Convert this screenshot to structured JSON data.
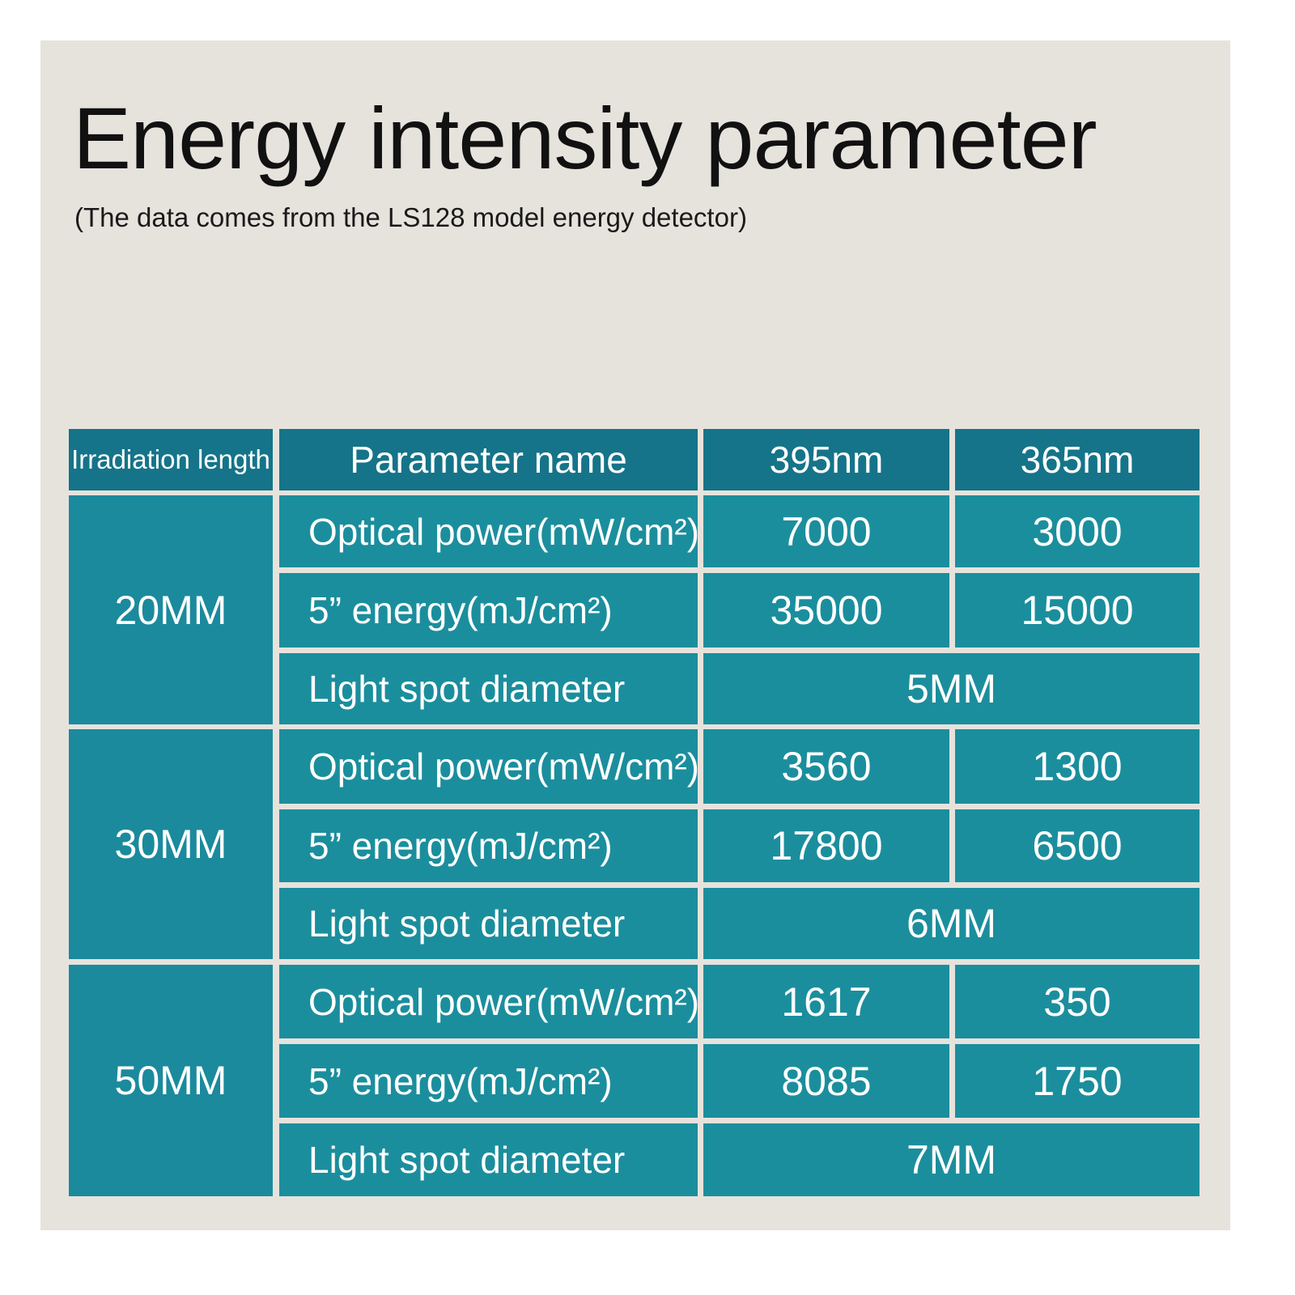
{
  "title": "Energy intensity parameter",
  "subtitle": "(The data comes from the LS128 model energy detector)",
  "colors": {
    "background": "#e6e3dd",
    "header": "#157489",
    "cell": "#1b8e9d",
    "text": "#ffffff"
  },
  "table": {
    "headers": [
      "Irradiation length",
      "Parameter name",
      "395nm",
      "365nm"
    ],
    "groups": [
      {
        "length": "20MM",
        "rows": [
          {
            "name": "Optical power(mW/cm²)",
            "nm395": "7000",
            "nm365": "3000"
          },
          {
            "name": "5” energy(mJ/cm²)",
            "nm395": "35000",
            "nm365": "15000"
          }
        ],
        "spot": {
          "name": "Light spot diameter",
          "value": "5MM"
        }
      },
      {
        "length": "30MM",
        "rows": [
          {
            "name": "Optical power(mW/cm²)",
            "nm395": "3560",
            "nm365": "1300"
          },
          {
            "name": "5” energy(mJ/cm²)",
            "nm395": "17800",
            "nm365": "6500"
          }
        ],
        "spot": {
          "name": "Light spot diameter",
          "value": "6MM"
        }
      },
      {
        "length": "50MM",
        "rows": [
          {
            "name": "Optical power(mW/cm²)",
            "nm395": "1617",
            "nm365": "350"
          },
          {
            "name": "5” energy(mJ/cm²)",
            "nm395": "8085",
            "nm365": "1750"
          }
        ],
        "spot": {
          "name": "Light spot diameter",
          "value": "7MM"
        }
      }
    ]
  }
}
